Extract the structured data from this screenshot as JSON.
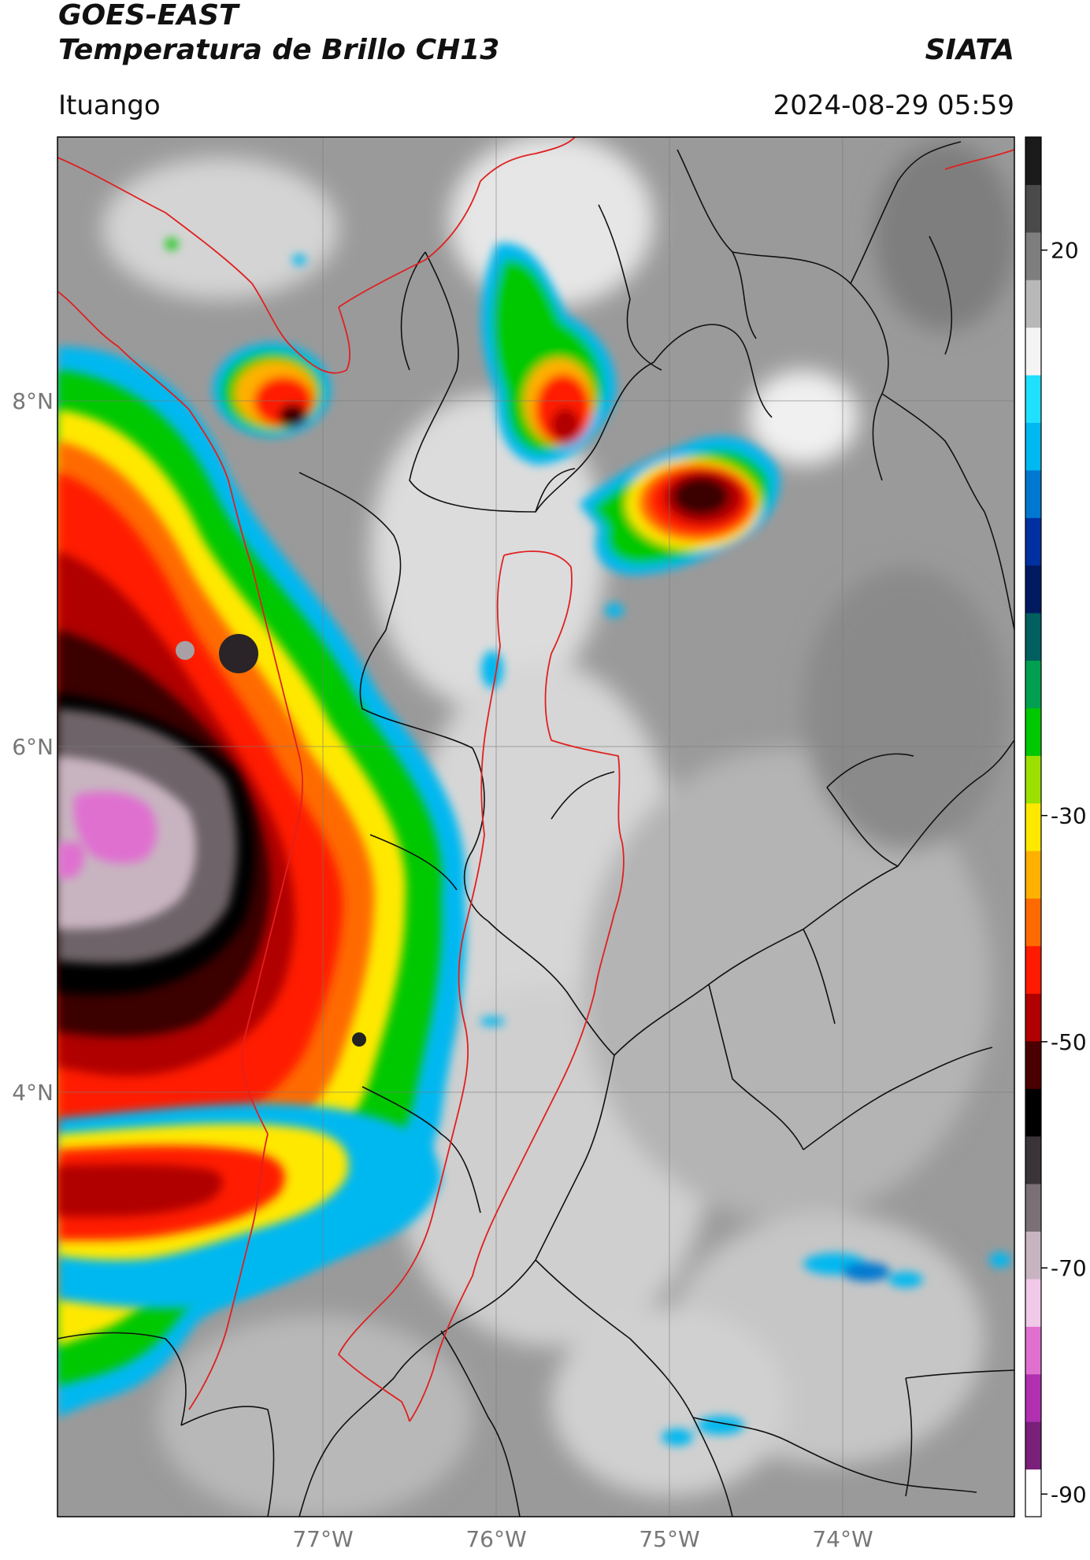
{
  "header": {
    "satellite": "GOES-EAST",
    "product": "Temperatura de Brillo CH13",
    "organization": "SIATA",
    "region": "Ituango",
    "timestamp": "2024-08-29 05:59"
  },
  "map": {
    "lat_labels": [
      "8°N",
      "6°N",
      "4°N"
    ],
    "lon_labels": [
      "77°W",
      "76°W",
      "75°W",
      "74°W"
    ],
    "grid": true,
    "colors": {
      "boundary_country": "#e02020",
      "boundary_admin": "#111111",
      "background": "#9a9a9a"
    }
  },
  "colorbar": {
    "ticks": [
      "20",
      "-30",
      "-50",
      "-70",
      "-90"
    ],
    "tick_values": [
      20,
      -30,
      -50,
      -70,
      -90
    ],
    "range": [
      -92,
      30
    ],
    "orientation": "vertical",
    "placement": "right",
    "palette": [
      "#ffffff",
      "#7a1f7a",
      "#b030b0",
      "#e070d0",
      "#f0c8e8",
      "#c8b4c0",
      "#7a7076",
      "#3a3438",
      "#000000",
      "#4a0000",
      "#b00000",
      "#ff1a00",
      "#ff6a00",
      "#ffb000",
      "#ffe800",
      "#9be000",
      "#00c800",
      "#00a050",
      "#006060",
      "#001a60",
      "#0030a0",
      "#0078d0",
      "#00b8f0",
      "#20e0ff",
      "#f4f4f4",
      "#b8b8b8",
      "#7e7e7e",
      "#4a4a4a",
      "#1a1a1a"
    ]
  }
}
